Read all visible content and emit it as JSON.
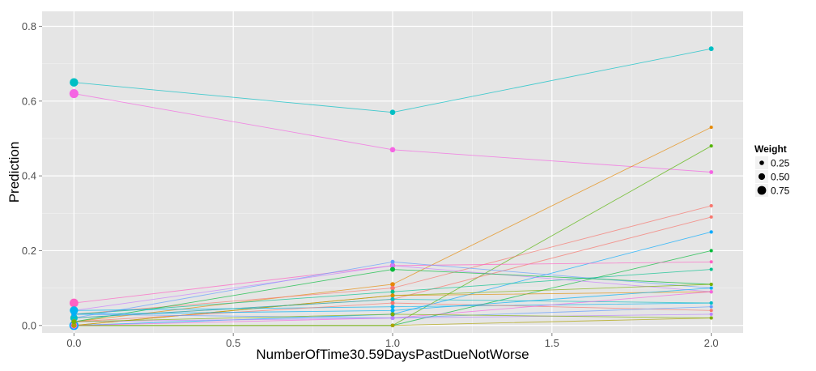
{
  "chart_data": {
    "type": "line",
    "title": "",
    "xlabel": "NumberOfTime30.59DaysPastDueNotWorse",
    "ylabel": "Prediction",
    "xlim": [
      -0.1,
      2.1
    ],
    "ylim": [
      -0.02,
      0.84
    ],
    "x_ticks": [
      0.0,
      0.5,
      1.0,
      1.5,
      2.0
    ],
    "x_tick_labels": [
      "0.0",
      "0.5",
      "1.0",
      "1.5",
      "2.0"
    ],
    "y_ticks": [
      0.0,
      0.2,
      0.4,
      0.6,
      0.8
    ],
    "y_tick_labels": [
      "0.0",
      "0.2",
      "0.4",
      "0.6",
      "0.8"
    ],
    "x": [
      0,
      1,
      2
    ],
    "grid": true,
    "background": "#e5e5e5",
    "legend": {
      "title": "Weight",
      "position": "right",
      "items": [
        {
          "label": "0.25",
          "size": 0.25
        },
        {
          "label": "0.50",
          "size": 0.5
        },
        {
          "label": "0.75",
          "size": 0.75
        }
      ]
    },
    "series": [
      {
        "color": "#00BFC4",
        "y": [
          0.65,
          0.57,
          0.74
        ],
        "weights": [
          0.72,
          0.35,
          0.28
        ]
      },
      {
        "color": "#F564E3",
        "y": [
          0.62,
          0.47,
          0.41
        ],
        "weights": [
          0.78,
          0.35,
          0.18
        ]
      },
      {
        "color": "#E58700",
        "y": [
          0.01,
          0.11,
          0.53
        ],
        "weights": [
          0.3,
          0.25,
          0.1
        ]
      },
      {
        "color": "#53B400",
        "y": [
          0.0,
          0.0,
          0.48
        ],
        "weights": [
          0.3,
          0.15,
          0.1
        ]
      },
      {
        "color": "#F8766D",
        "y": [
          0.03,
          0.1,
          0.32
        ],
        "weights": [
          0.35,
          0.25,
          0.12
        ]
      },
      {
        "color": "#F8766D",
        "y": [
          0.02,
          0.07,
          0.29
        ],
        "weights": [
          0.3,
          0.2,
          0.1
        ]
      },
      {
        "color": "#00A9FF",
        "y": [
          0.0,
          0.03,
          0.25
        ],
        "weights": [
          0.8,
          0.25,
          0.12
        ]
      },
      {
        "color": "#00BA38",
        "y": [
          0.0,
          0.0,
          0.2
        ],
        "weights": [
          0.3,
          0.15,
          0.1
        ]
      },
      {
        "color": "#FF61C3",
        "y": [
          0.06,
          0.16,
          0.17
        ],
        "weights": [
          0.75,
          0.35,
          0.1
        ]
      },
      {
        "color": "#00C08B",
        "y": [
          0.03,
          0.09,
          0.15
        ],
        "weights": [
          0.3,
          0.2,
          0.1
        ]
      },
      {
        "color": "#619CFF",
        "y": [
          0.02,
          0.17,
          0.1
        ],
        "weights": [
          0.3,
          0.2,
          0.1
        ]
      },
      {
        "color": "#C77CFF",
        "y": [
          0.04,
          0.16,
          0.09
        ],
        "weights": [
          0.3,
          0.2,
          0.1
        ]
      },
      {
        "color": "#00BA38",
        "y": [
          0.01,
          0.15,
          0.11
        ],
        "weights": [
          0.3,
          0.3,
          0.1
        ]
      },
      {
        "color": "#7CAE00",
        "y": [
          0.0,
          0.08,
          0.11
        ],
        "weights": [
          0.3,
          0.2,
          0.1
        ]
      },
      {
        "color": "#DE8C00",
        "y": [
          0.0,
          0.08,
          0.09
        ],
        "weights": [
          0.3,
          0.2,
          0.1
        ]
      },
      {
        "color": "#00B4F0",
        "y": [
          0.04,
          0.05,
          0.06
        ],
        "weights": [
          0.7,
          0.2,
          0.1
        ]
      },
      {
        "color": "#00BFC4",
        "y": [
          0.02,
          0.07,
          0.06
        ],
        "weights": [
          0.6,
          0.2,
          0.1
        ]
      },
      {
        "color": "#F8766D",
        "y": [
          0.01,
          0.06,
          0.04
        ],
        "weights": [
          0.3,
          0.2,
          0.1
        ]
      },
      {
        "color": "#F564E3",
        "y": [
          0.0,
          0.02,
          0.09
        ],
        "weights": [
          0.5,
          0.2,
          0.1
        ]
      },
      {
        "color": "#619CFF",
        "y": [
          0.03,
          0.02,
          0.05
        ],
        "weights": [
          0.3,
          0.2,
          0.1
        ]
      },
      {
        "color": "#AEA200",
        "y": [
          0.0,
          0.0,
          0.02
        ],
        "weights": [
          0.3,
          0.15,
          0.1
        ]
      },
      {
        "color": "#B983FF",
        "y": [
          0.01,
          0.02,
          0.03
        ],
        "weights": [
          0.3,
          0.2,
          0.1
        ]
      },
      {
        "color": "#00B0F6",
        "y": [
          0.03,
          0.04,
          0.1
        ],
        "weights": [
          0.3,
          0.2,
          0.1
        ]
      },
      {
        "color": "#7CAE00",
        "y": [
          0.01,
          0.03,
          0.02
        ],
        "weights": [
          0.3,
          0.2,
          0.1
        ]
      }
    ]
  }
}
